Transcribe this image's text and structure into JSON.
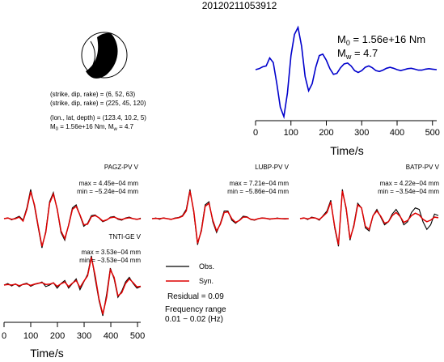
{
  "chart_data": {
    "type": "line",
    "title": "20120211053912",
    "focal_mechanism": {
      "plane1": {
        "strike": 6,
        "dip": 52,
        "rake": 63
      },
      "plane2": {
        "strike": 225,
        "dip": 45,
        "rake": 120
      },
      "lon": 123.4,
      "lat": 10.2,
      "depth": 5,
      "m0": "1.56e+16 Nm",
      "mw": 4.7
    },
    "info_lines": [
      "(strike, dip, rake) = (6, 52, 63)",
      "(strike, dip, rake) = (225, 45, 120)",
      "(lon., lat, depth) = (123.4, 10.2, 5)"
    ],
    "moment_line": {
      "label": "M",
      "sub": "0",
      "value": " = 1.56e+16 Nm, M",
      "sub2": "w",
      "tail": " = 4.7"
    },
    "stf": {
      "m0_label": "M",
      "m0_sub": "0",
      "m0_value": " = 1.56e+16 Nm",
      "mw_label": "M",
      "mw_sub": "w",
      "mw_value": " = 4.7",
      "xlabel": "Time/s",
      "xlim": [
        0,
        512
      ],
      "xticks": [
        0,
        100,
        200,
        300,
        400,
        500
      ],
      "color": "#0000cc",
      "x": [
        0,
        10,
        20,
        30,
        40,
        50,
        60,
        70,
        80,
        90,
        100,
        110,
        120,
        130,
        140,
        150,
        160,
        170,
        180,
        190,
        200,
        210,
        220,
        230,
        240,
        250,
        260,
        270,
        280,
        290,
        300,
        310,
        320,
        330,
        340,
        350,
        360,
        370,
        380,
        390,
        400,
        410,
        420,
        430,
        440,
        450,
        460,
        470,
        480,
        490,
        500,
        512
      ],
      "y": [
        0,
        0.02,
        0.06,
        0.08,
        0.25,
        0.15,
        -0.3,
        -0.8,
        -1.0,
        -0.5,
        0.3,
        0.75,
        0.9,
        0.5,
        -0.15,
        -0.45,
        -0.3,
        0.05,
        0.3,
        0.33,
        0.2,
        0.02,
        -0.1,
        -0.08,
        0.04,
        0.12,
        0.14,
        0.08,
        -0.02,
        -0.06,
        -0.02,
        0.05,
        0.08,
        0.04,
        -0.02,
        -0.04,
        -0.01,
        0.03,
        0.05,
        0.03,
        0.0,
        -0.02,
        0.0,
        0.02,
        0.03,
        0.01,
        -0.01,
        -0.01,
        0.01,
        0.02,
        0.01,
        0.0
      ]
    },
    "stations": [
      {
        "name": "PAGZ-PV V",
        "max": "max = 4.45e−04 mm",
        "min": "min = −5.24e−04 mm",
        "obs": [
          0,
          0.03,
          -0.04,
          0.02,
          0.08,
          -0.05,
          0.35,
          0.95,
          0.4,
          -0.3,
          -0.95,
          -0.4,
          0.55,
          0.85,
          0.3,
          -0.45,
          -0.7,
          -0.2,
          0.35,
          0.45,
          0.1,
          -0.25,
          -0.15,
          0.1,
          0.12,
          0.02,
          -0.1,
          -0.05,
          0.05,
          0.07,
          -0.02,
          -0.05,
          0.02,
          0.05,
          0.0,
          -0.03,
          0.02
        ],
        "syn": [
          0,
          0.02,
          -0.02,
          0.0,
          0.05,
          -0.08,
          0.3,
          0.88,
          0.45,
          -0.25,
          -0.9,
          -0.45,
          0.5,
          0.8,
          0.32,
          -0.4,
          -0.65,
          -0.22,
          0.3,
          0.4,
          0.12,
          -0.2,
          -0.18,
          0.06,
          0.1,
          0.03,
          -0.08,
          -0.04,
          0.03,
          0.05,
          0.0,
          -0.03,
          0.01,
          0.03,
          0.0,
          -0.02,
          0.0
        ]
      },
      {
        "name": "LUBP-PV V",
        "max": "max = 7.21e−04 mm",
        "min": "min = −5.86e−04 mm",
        "obs": [
          0,
          0.02,
          -0.02,
          0.03,
          0.0,
          -0.03,
          0.02,
          0.04,
          0.1,
          0.3,
          0.95,
          0.2,
          -0.85,
          -0.35,
          0.45,
          0.55,
          -0.1,
          -0.45,
          -0.15,
          0.25,
          0.25,
          -0.05,
          -0.15,
          -0.05,
          0.08,
          0.06,
          -0.03,
          -0.05,
          0.0,
          0.03,
          0.01,
          -0.02,
          0.0,
          0.02,
          0.0,
          -0.01,
          0.0
        ],
        "syn": [
          0,
          0.01,
          0.0,
          0.02,
          0.0,
          -0.02,
          0.01,
          0.03,
          0.08,
          0.25,
          0.9,
          0.25,
          -0.8,
          -0.4,
          0.4,
          0.5,
          -0.05,
          -0.4,
          -0.18,
          0.2,
          0.22,
          0.0,
          -0.12,
          -0.06,
          0.05,
          0.05,
          -0.02,
          -0.04,
          0.0,
          0.02,
          0.01,
          -0.01,
          0.0,
          0.01,
          0.0,
          0.0,
          0.0
        ]
      },
      {
        "name": "BATP-PV V",
        "max": "max = 4.22e−04 mm",
        "min": "min = −3.54e−04 mm",
        "obs": [
          0,
          0.03,
          -0.03,
          0.05,
          0.02,
          -0.05,
          0.1,
          0.25,
          0.6,
          -0.3,
          -0.9,
          0.95,
          0.3,
          -0.7,
          -0.2,
          0.5,
          0.35,
          -0.3,
          -0.4,
          0.1,
          0.3,
          0.05,
          -0.2,
          -0.1,
          0.15,
          0.3,
          0.1,
          -0.2,
          -0.1,
          0.2,
          0.35,
          0.3,
          -0.1,
          -0.35,
          -0.2,
          0.15,
          0.1
        ],
        "syn": [
          0,
          0.02,
          -0.01,
          0.03,
          0.02,
          -0.03,
          0.08,
          0.2,
          0.55,
          -0.25,
          -0.85,
          0.9,
          0.35,
          -0.65,
          -0.25,
          0.45,
          0.35,
          -0.25,
          -0.35,
          0.1,
          0.25,
          0.08,
          -0.15,
          -0.1,
          0.1,
          0.2,
          0.08,
          -0.12,
          -0.06,
          0.1,
          0.18,
          0.12,
          -0.02,
          -0.1,
          -0.05,
          0.05,
          0.03
        ]
      },
      {
        "name": "TNTI-GE V",
        "max": "max = 3.53e−04 mm",
        "min": "min = −3.53e−04 mm",
        "obs": [
          0,
          0.05,
          -0.03,
          0.04,
          -0.05,
          0.03,
          0.06,
          -0.04,
          0.02,
          0.05,
          0.1,
          -0.05,
          0.0,
          0.08,
          -0.1,
          0.05,
          0.15,
          -0.1,
          0.05,
          0.2,
          -0.15,
          0.1,
          0.35,
          0.95,
          0.2,
          -0.5,
          -1.0,
          -0.3,
          0.55,
          0.2,
          -0.4,
          -0.2,
          0.1,
          0.25,
          0.05,
          -0.1,
          -0.05
        ],
        "syn": [
          0,
          0.02,
          0.0,
          0.03,
          -0.02,
          0.02,
          0.04,
          -0.01,
          0.03,
          0.06,
          0.08,
          0.02,
          0.03,
          0.07,
          -0.04,
          0.04,
          0.1,
          -0.05,
          0.06,
          0.15,
          -0.08,
          0.12,
          0.3,
          0.9,
          0.3,
          -0.45,
          -0.95,
          -0.4,
          0.5,
          0.25,
          -0.35,
          -0.25,
          0.05,
          0.2,
          0.08,
          -0.06,
          -0.04
        ]
      }
    ],
    "xaxis": {
      "xlabel": "Time/s",
      "xlim": [
        0,
        512
      ],
      "xticks": [
        0,
        100,
        200,
        300,
        400,
        500
      ]
    },
    "legend": {
      "obs_label": "Obs.",
      "syn_label": "Syn.",
      "obs_color": "#000000",
      "syn_color": "#dd0000"
    },
    "residual": "Residual = 0.09",
    "freq_title": "Frequency range",
    "freq_range": "0.01 − 0.02 (Hz)"
  }
}
